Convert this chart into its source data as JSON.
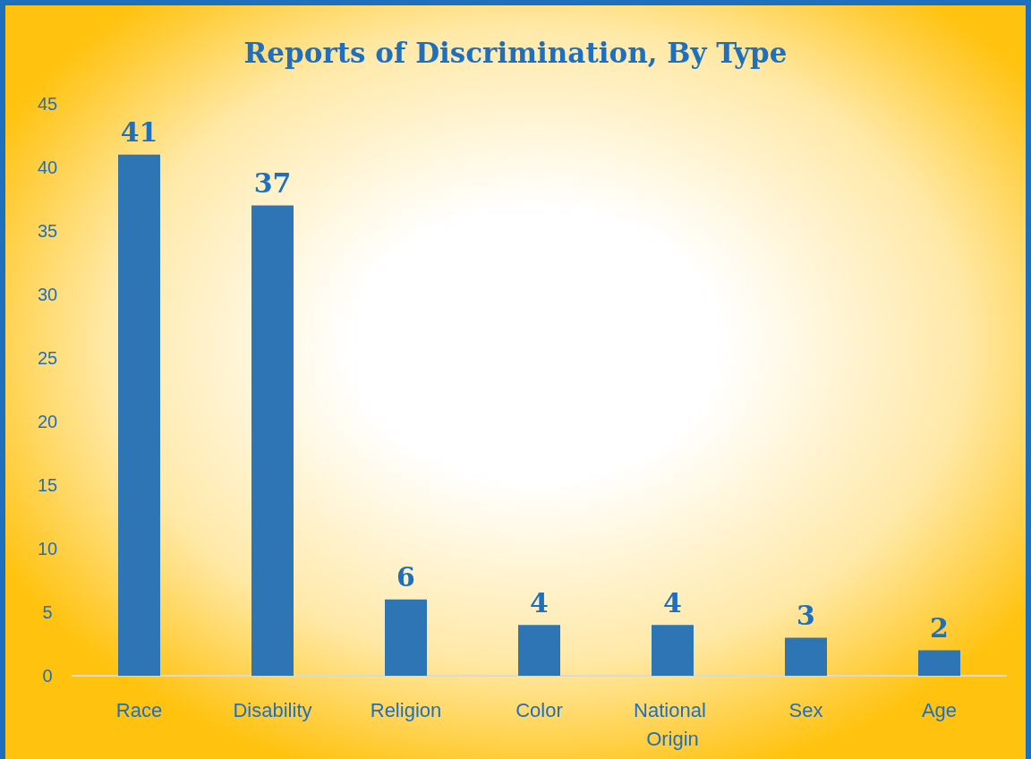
{
  "chart_data": {
    "type": "bar",
    "title": "Reports of Discrimination, By Type",
    "categories": [
      "Race",
      "Disability",
      "Religion",
      "Color",
      "National Origin",
      "Sex",
      "Age"
    ],
    "values": [
      41,
      37,
      6,
      4,
      4,
      3,
      2
    ],
    "color": "#2e75b6",
    "ylim": [
      0,
      45
    ],
    "yticks": [
      0,
      5,
      10,
      15,
      20,
      25,
      30,
      35,
      40,
      45
    ],
    "grid": false,
    "data_labels": true
  }
}
